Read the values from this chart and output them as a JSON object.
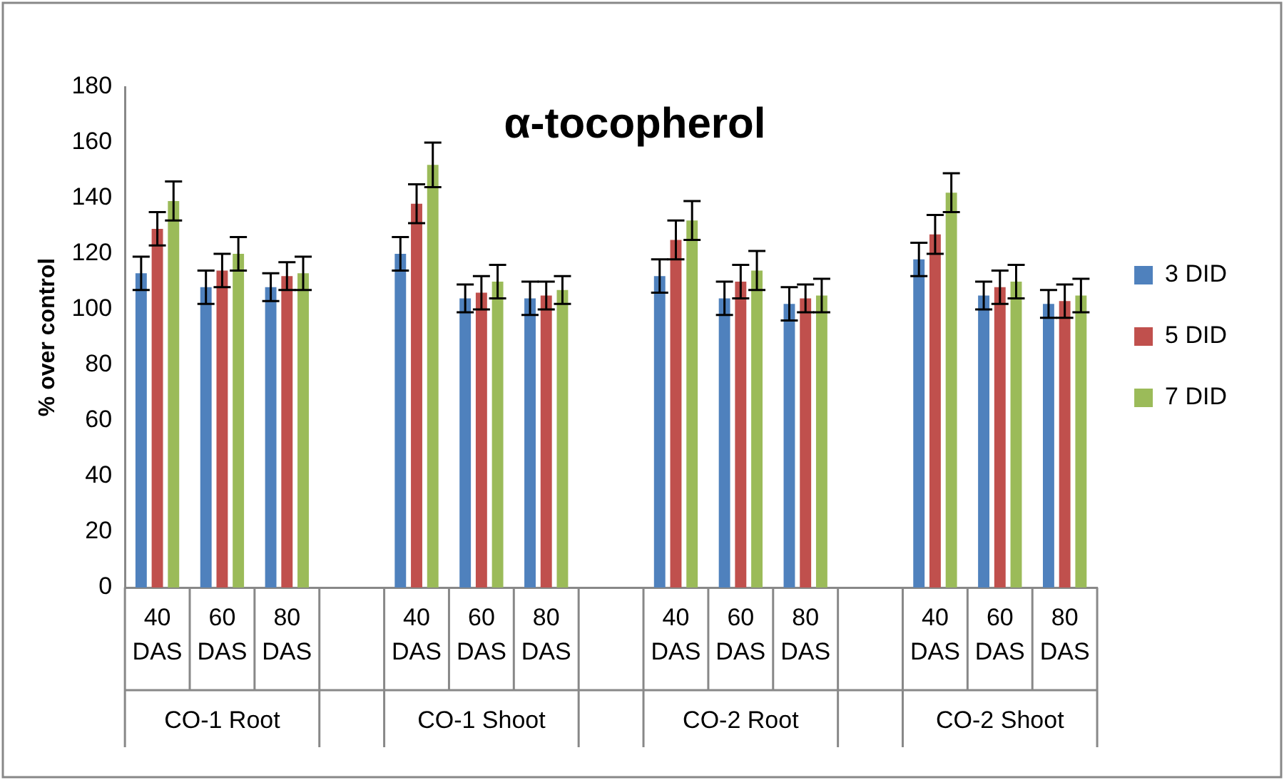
{
  "chart_data": {
    "type": "bar",
    "title": "α-tocopherol",
    "ylabel": "% over control",
    "categories": [
      "40 DAS",
      "60 DAS",
      "80 DAS",
      null,
      "40 DAS",
      "60 DAS",
      "80 DAS",
      null,
      "40 DAS",
      "60 DAS",
      "80 DAS",
      null,
      "40 DAS",
      "60 DAS",
      "80 DAS"
    ],
    "series": [
      {
        "name": "3 DID",
        "color": "#4f81bd",
        "values": [
          113,
          108,
          108,
          null,
          120,
          104,
          104,
          null,
          112,
          104,
          102,
          null,
          118,
          105,
          102
        ],
        "errors": [
          6,
          6,
          5,
          null,
          6,
          5,
          6,
          null,
          6,
          6,
          6,
          null,
          6,
          5,
          5
        ]
      },
      {
        "name": "5 DID",
        "color": "#c0504d",
        "values": [
          129,
          114,
          112,
          null,
          138,
          106,
          105,
          null,
          125,
          110,
          104,
          null,
          127,
          108,
          103
        ],
        "errors": [
          6,
          6,
          5,
          null,
          7,
          6,
          5,
          null,
          7,
          6,
          5,
          null,
          7,
          6,
          6
        ]
      },
      {
        "name": "7 DID",
        "color": "#9bbb59",
        "values": [
          139,
          120,
          113,
          null,
          152,
          110,
          107,
          null,
          132,
          114,
          105,
          null,
          142,
          110,
          105
        ],
        "errors": [
          7,
          6,
          6,
          null,
          8,
          6,
          5,
          null,
          7,
          7,
          6,
          null,
          7,
          6,
          6
        ]
      }
    ],
    "ylim": [
      0,
      180
    ],
    "yticks": [
      0,
      20,
      40,
      60,
      80,
      100,
      120,
      140,
      160,
      180
    ],
    "grid": false,
    "legend": "right",
    "annotations": [
      "CO-1 Root",
      "CO-1 Shoot",
      "CO-2 Root",
      "CO-2 Shoot"
    ]
  }
}
